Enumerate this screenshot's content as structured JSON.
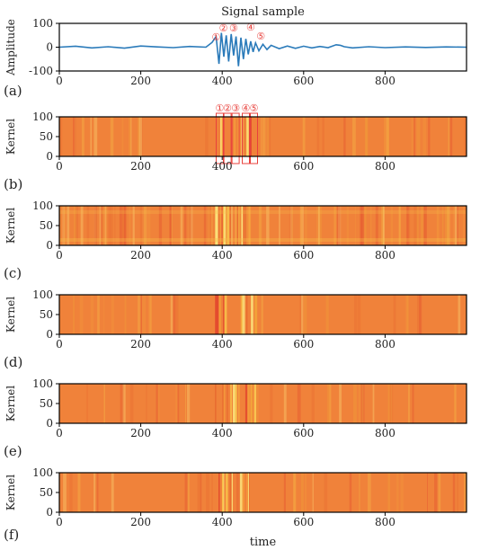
{
  "figure_title": "Signal sample",
  "chart_data": [
    {
      "panel_label": "(a)",
      "type": "line",
      "title": "Signal sample",
      "xlabel": "",
      "ylabel": "Amplitude",
      "xlim": [
        0,
        1000
      ],
      "ylim": [
        -100,
        100
      ],
      "xticks": [
        0,
        200,
        400,
        600,
        800
      ],
      "yticks": [
        -100,
        0,
        100
      ],
      "line_color": "#2b7bba",
      "series": [
        {
          "x": [
            0,
            40,
            80,
            120,
            160,
            200,
            240,
            280,
            320,
            360,
            375,
            385,
            392,
            398,
            404,
            410,
            416,
            422,
            428,
            434,
            440,
            446,
            452,
            458,
            464,
            470,
            476,
            482,
            490,
            500,
            510,
            520,
            540,
            560,
            580,
            600,
            620,
            640,
            660,
            680,
            690,
            700,
            720,
            760,
            800,
            850,
            900,
            950,
            1000
          ],
          "y": [
            0,
            4,
            -3,
            2,
            -4,
            5,
            1,
            -2,
            3,
            0,
            20,
            45,
            -70,
            60,
            -40,
            50,
            -60,
            55,
            -35,
            45,
            -80,
            40,
            -50,
            35,
            -30,
            25,
            -20,
            18,
            -15,
            12,
            -10,
            8,
            -6,
            5,
            -5,
            4,
            -3,
            3,
            -2,
            10,
            8,
            2,
            -3,
            2,
            -2,
            1,
            -1,
            1,
            0
          ]
        }
      ],
      "annotations": [
        "①",
        "②",
        "③",
        "④",
        "⑤"
      ],
      "annotation_x": [
        385,
        403,
        428,
        470,
        495
      ]
    },
    {
      "panel_label": "(b)",
      "type": "heatmap",
      "ylabel": "Kernel",
      "xlim": [
        0,
        1000
      ],
      "ylim": [
        0,
        100
      ],
      "xticks": [
        0,
        200,
        400,
        600,
        800
      ],
      "yticks": [
        0,
        50,
        100
      ],
      "annotations": [
        "①",
        "②",
        "③",
        "④",
        "⑤"
      ],
      "annotation_x": [
        394,
        413,
        433,
        458,
        478
      ],
      "annotation_color": "#e8413c"
    },
    {
      "panel_label": "(c)",
      "type": "heatmap",
      "ylabel": "Kernel",
      "xlim": [
        0,
        1000
      ],
      "ylim": [
        0,
        100
      ],
      "xticks": [
        0,
        200,
        400,
        600,
        800
      ],
      "yticks": [
        0,
        50,
        100
      ]
    },
    {
      "panel_label": "(d)",
      "type": "heatmap",
      "ylabel": "Kernel",
      "xlim": [
        0,
        1000
      ],
      "ylim": [
        0,
        100
      ],
      "xticks": [
        0,
        200,
        400,
        600,
        800
      ],
      "yticks": [
        0,
        50,
        100
      ]
    },
    {
      "panel_label": "(e)",
      "type": "heatmap",
      "ylabel": "Kernel",
      "xlim": [
        0,
        1000
      ],
      "ylim": [
        0,
        100
      ],
      "xticks": [
        0,
        200,
        400,
        600,
        800
      ],
      "yticks": [
        0,
        50,
        100
      ]
    },
    {
      "panel_label": "(f)",
      "type": "heatmap",
      "ylabel": "Kernel",
      "xlabel": "time",
      "xlim": [
        0,
        1000
      ],
      "ylim": [
        0,
        100
      ],
      "xticks": [
        0,
        200,
        400,
        600,
        800
      ],
      "yticks": [
        0,
        50,
        100
      ]
    }
  ],
  "colors": {
    "heatmap_base": "#f0823a",
    "heatmap_light": "#f7c04a",
    "heatmap_dark": "#e34a2f",
    "annotation_red": "#e8413c"
  }
}
